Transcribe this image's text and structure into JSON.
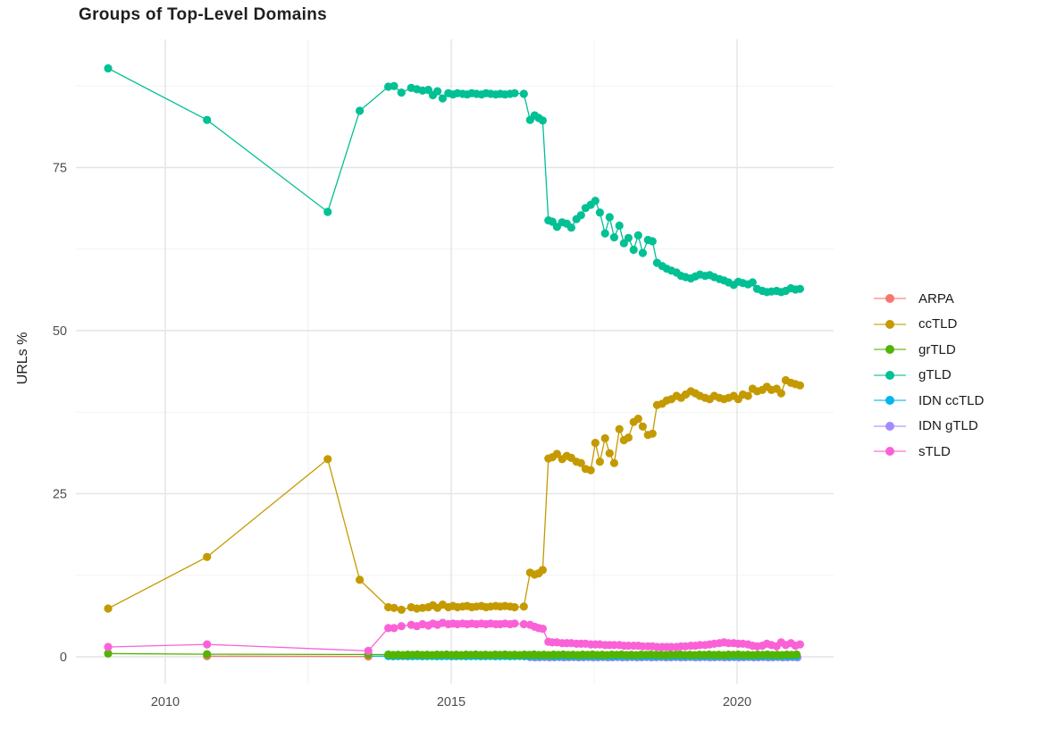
{
  "chart_data": {
    "type": "line",
    "title": "Groups of Top-Level Domains",
    "xlabel": "",
    "ylabel": "URLs %",
    "x_ticks": [
      2010,
      2015,
      2020
    ],
    "x_minor": [
      2012.5,
      2017.5
    ],
    "y_ticks": [
      0,
      25,
      50,
      75
    ],
    "y_minor": [
      12.5,
      37.5,
      62.5,
      87.5
    ],
    "xlim": [
      2008.4,
      2021.7
    ],
    "ylim": [
      -4,
      94
    ],
    "grid": "major-and-minor",
    "legend_position": "right",
    "draw_order": [
      "IDN gTLD",
      "IDN ccTLD",
      "ARPA",
      "grTLD",
      "ccTLD",
      "gTLD",
      "sTLD"
    ],
    "series": [
      {
        "name": "ARPA",
        "color": "#F8766D",
        "points": [
          [
            2010.73,
            0.1
          ],
          [
            2013.55,
            0.05
          ]
        ]
      },
      {
        "name": "ccTLD",
        "color": "#C49A00",
        "points": [
          [
            2009.0,
            7.4
          ],
          [
            2010.73,
            15.3
          ],
          [
            2012.84,
            30.3
          ],
          [
            2013.4,
            11.8
          ],
          [
            2013.9,
            7.6
          ],
          [
            2014.0,
            7.5
          ],
          [
            2014.13,
            7.2
          ],
          [
            2014.3,
            7.6
          ],
          [
            2014.4,
            7.4
          ],
          [
            2014.5,
            7.5
          ],
          [
            2014.6,
            7.6
          ],
          [
            2014.68,
            7.9
          ],
          [
            2014.76,
            7.5
          ],
          [
            2014.85,
            8.0
          ],
          [
            2014.95,
            7.6
          ],
          [
            2015.03,
            7.8
          ],
          [
            2015.11,
            7.6
          ],
          [
            2015.2,
            7.7
          ],
          [
            2015.28,
            7.8
          ],
          [
            2015.36,
            7.6
          ],
          [
            2015.44,
            7.7
          ],
          [
            2015.53,
            7.8
          ],
          [
            2015.61,
            7.6
          ],
          [
            2015.69,
            7.7
          ],
          [
            2015.78,
            7.8
          ],
          [
            2015.86,
            7.7
          ],
          [
            2015.94,
            7.8
          ],
          [
            2016.03,
            7.7
          ],
          [
            2016.11,
            7.6
          ],
          [
            2016.27,
            7.7
          ],
          [
            2016.38,
            12.9
          ],
          [
            2016.46,
            12.6
          ],
          [
            2016.53,
            12.8
          ],
          [
            2016.6,
            13.3
          ],
          [
            2016.7,
            30.4
          ],
          [
            2016.77,
            30.6
          ],
          [
            2016.85,
            31.1
          ],
          [
            2016.94,
            30.3
          ],
          [
            2017.02,
            30.8
          ],
          [
            2017.1,
            30.5
          ],
          [
            2017.19,
            29.9
          ],
          [
            2017.27,
            29.7
          ],
          [
            2017.35,
            28.8
          ],
          [
            2017.44,
            28.6
          ],
          [
            2017.52,
            32.8
          ],
          [
            2017.6,
            29.9
          ],
          [
            2017.69,
            33.5
          ],
          [
            2017.77,
            31.2
          ],
          [
            2017.85,
            29.7
          ],
          [
            2017.94,
            34.9
          ],
          [
            2018.02,
            33.2
          ],
          [
            2018.1,
            33.6
          ],
          [
            2018.19,
            36.0
          ],
          [
            2018.27,
            36.5
          ],
          [
            2018.35,
            35.3
          ],
          [
            2018.44,
            34.0
          ],
          [
            2018.52,
            34.2
          ],
          [
            2018.6,
            38.6
          ],
          [
            2018.69,
            38.8
          ],
          [
            2018.77,
            39.3
          ],
          [
            2018.85,
            39.5
          ],
          [
            2018.94,
            40.0
          ],
          [
            2019.02,
            39.7
          ],
          [
            2019.1,
            40.2
          ],
          [
            2019.19,
            40.7
          ],
          [
            2019.27,
            40.4
          ],
          [
            2019.35,
            40.0
          ],
          [
            2019.44,
            39.7
          ],
          [
            2019.52,
            39.5
          ],
          [
            2019.6,
            40.0
          ],
          [
            2019.69,
            39.7
          ],
          [
            2019.77,
            39.5
          ],
          [
            2019.85,
            39.7
          ],
          [
            2019.94,
            40.0
          ],
          [
            2020.02,
            39.5
          ],
          [
            2020.1,
            40.2
          ],
          [
            2020.19,
            40.0
          ],
          [
            2020.27,
            41.1
          ],
          [
            2020.35,
            40.7
          ],
          [
            2020.44,
            40.9
          ],
          [
            2020.52,
            41.4
          ],
          [
            2020.6,
            40.9
          ],
          [
            2020.69,
            41.1
          ],
          [
            2020.77,
            40.4
          ],
          [
            2020.85,
            42.4
          ],
          [
            2020.94,
            42.0
          ],
          [
            2021.02,
            41.8
          ],
          [
            2021.1,
            41.6
          ]
        ]
      },
      {
        "name": "grTLD",
        "color": "#53B400",
        "points": [
          [
            2009.0,
            0.5
          ],
          [
            2010.73,
            0.4
          ],
          [
            2013.55,
            0.35
          ]
        ],
        "flat": {
          "from": 2013.9,
          "to": 2021.1,
          "step": 0.085,
          "value": 0.3,
          "jitter": [
            0.04,
            -0.03,
            0.01,
            -0.04,
            0.03,
            0.0
          ]
        }
      },
      {
        "name": "gTLD",
        "color": "#00C094",
        "points": [
          [
            2009.0,
            90.2
          ],
          [
            2010.73,
            82.3
          ],
          [
            2012.84,
            68.2
          ],
          [
            2013.4,
            83.7
          ],
          [
            2013.9,
            87.4
          ],
          [
            2014.0,
            87.5
          ],
          [
            2014.13,
            86.5
          ],
          [
            2014.3,
            87.2
          ],
          [
            2014.4,
            87.0
          ],
          [
            2014.5,
            86.8
          ],
          [
            2014.6,
            86.9
          ],
          [
            2014.68,
            86.1
          ],
          [
            2014.76,
            86.7
          ],
          [
            2014.85,
            85.6
          ],
          [
            2014.95,
            86.4
          ],
          [
            2015.03,
            86.2
          ],
          [
            2015.11,
            86.4
          ],
          [
            2015.2,
            86.3
          ],
          [
            2015.28,
            86.2
          ],
          [
            2015.36,
            86.4
          ],
          [
            2015.44,
            86.3
          ],
          [
            2015.53,
            86.2
          ],
          [
            2015.61,
            86.4
          ],
          [
            2015.69,
            86.3
          ],
          [
            2015.78,
            86.2
          ],
          [
            2015.86,
            86.3
          ],
          [
            2015.94,
            86.2
          ],
          [
            2016.03,
            86.3
          ],
          [
            2016.11,
            86.4
          ],
          [
            2016.27,
            86.3
          ],
          [
            2016.38,
            82.3
          ],
          [
            2016.46,
            83.0
          ],
          [
            2016.53,
            82.6
          ],
          [
            2016.6,
            82.2
          ],
          [
            2016.7,
            66.9
          ],
          [
            2016.77,
            66.7
          ],
          [
            2016.85,
            65.9
          ],
          [
            2016.94,
            66.6
          ],
          [
            2017.02,
            66.4
          ],
          [
            2017.1,
            65.8
          ],
          [
            2017.19,
            67.1
          ],
          [
            2017.27,
            67.7
          ],
          [
            2017.35,
            68.8
          ],
          [
            2017.44,
            69.3
          ],
          [
            2017.52,
            69.9
          ],
          [
            2017.6,
            68.1
          ],
          [
            2017.69,
            64.9
          ],
          [
            2017.77,
            67.4
          ],
          [
            2017.85,
            64.3
          ],
          [
            2017.94,
            66.1
          ],
          [
            2018.02,
            63.4
          ],
          [
            2018.1,
            64.2
          ],
          [
            2018.19,
            62.4
          ],
          [
            2018.27,
            64.6
          ],
          [
            2018.35,
            61.9
          ],
          [
            2018.44,
            63.9
          ],
          [
            2018.52,
            63.7
          ],
          [
            2018.6,
            60.4
          ],
          [
            2018.69,
            59.9
          ],
          [
            2018.77,
            59.5
          ],
          [
            2018.85,
            59.2
          ],
          [
            2018.94,
            58.9
          ],
          [
            2019.02,
            58.4
          ],
          [
            2019.1,
            58.2
          ],
          [
            2019.19,
            58.0
          ],
          [
            2019.27,
            58.3
          ],
          [
            2019.35,
            58.6
          ],
          [
            2019.44,
            58.4
          ],
          [
            2019.52,
            58.5
          ],
          [
            2019.6,
            58.2
          ],
          [
            2019.69,
            57.9
          ],
          [
            2019.77,
            57.7
          ],
          [
            2019.85,
            57.4
          ],
          [
            2019.94,
            57.0
          ],
          [
            2020.02,
            57.5
          ],
          [
            2020.1,
            57.3
          ],
          [
            2020.19,
            57.1
          ],
          [
            2020.27,
            57.4
          ],
          [
            2020.35,
            56.4
          ],
          [
            2020.44,
            56.1
          ],
          [
            2020.52,
            55.9
          ],
          [
            2020.6,
            56.0
          ],
          [
            2020.69,
            56.1
          ],
          [
            2020.77,
            55.9
          ],
          [
            2020.85,
            56.1
          ],
          [
            2020.94,
            56.5
          ],
          [
            2021.02,
            56.3
          ],
          [
            2021.1,
            56.4
          ]
        ]
      },
      {
        "name": "IDN ccTLD",
        "color": "#00B6EB",
        "points": [
          [
            2013.55,
            0.1
          ]
        ],
        "flat": {
          "from": 2013.9,
          "to": 2021.1,
          "step": 0.085,
          "value": 0.1,
          "jitter": [
            0.02,
            -0.02,
            0.0
          ]
        }
      },
      {
        "name": "IDN gTLD",
        "color": "#A58AFF",
        "points": [],
        "flat": {
          "from": 2016.38,
          "to": 2021.1,
          "step": 0.085,
          "value": -0.07,
          "jitter": [
            0.02,
            -0.02,
            0.0
          ]
        }
      },
      {
        "name": "sTLD",
        "color": "#FB61D7",
        "points": [
          [
            2009.0,
            1.5
          ],
          [
            2010.73,
            1.9
          ],
          [
            2013.55,
            0.9
          ],
          [
            2013.9,
            4.4
          ],
          [
            2014.0,
            4.4
          ],
          [
            2014.13,
            4.7
          ],
          [
            2014.3,
            4.9
          ],
          [
            2014.4,
            4.7
          ],
          [
            2014.5,
            5.0
          ],
          [
            2014.6,
            4.8
          ],
          [
            2014.68,
            5.1
          ],
          [
            2014.76,
            4.9
          ],
          [
            2014.85,
            5.2
          ],
          [
            2014.95,
            5.0
          ],
          [
            2015.03,
            5.1
          ],
          [
            2015.11,
            5.0
          ],
          [
            2015.2,
            5.1
          ],
          [
            2015.28,
            5.0
          ],
          [
            2015.36,
            5.1
          ],
          [
            2015.44,
            5.0
          ],
          [
            2015.53,
            5.1
          ],
          [
            2015.61,
            5.0
          ],
          [
            2015.69,
            5.1
          ],
          [
            2015.78,
            5.0
          ],
          [
            2015.86,
            5.0
          ],
          [
            2015.94,
            5.1
          ],
          [
            2016.03,
            5.0
          ],
          [
            2016.11,
            5.1
          ],
          [
            2016.27,
            5.0
          ],
          [
            2016.38,
            4.9
          ],
          [
            2016.46,
            4.6
          ],
          [
            2016.53,
            4.4
          ],
          [
            2016.6,
            4.3
          ],
          [
            2016.7,
            2.3
          ],
          [
            2016.77,
            2.2
          ],
          [
            2016.85,
            2.2
          ],
          [
            2016.94,
            2.1
          ],
          [
            2017.02,
            2.1
          ],
          [
            2017.1,
            2.1
          ],
          [
            2017.19,
            2.0
          ],
          [
            2017.27,
            2.0
          ],
          [
            2017.35,
            2.0
          ],
          [
            2017.44,
            1.9
          ],
          [
            2017.52,
            1.9
          ],
          [
            2017.6,
            1.9
          ],
          [
            2017.69,
            1.8
          ],
          [
            2017.77,
            1.8
          ],
          [
            2017.85,
            1.8
          ],
          [
            2017.94,
            1.8
          ],
          [
            2018.02,
            1.7
          ],
          [
            2018.1,
            1.7
          ],
          [
            2018.19,
            1.7
          ],
          [
            2018.27,
            1.7
          ],
          [
            2018.35,
            1.6
          ],
          [
            2018.44,
            1.6
          ],
          [
            2018.52,
            1.6
          ],
          [
            2018.6,
            1.5
          ],
          [
            2018.69,
            1.5
          ],
          [
            2018.77,
            1.5
          ],
          [
            2018.85,
            1.5
          ],
          [
            2018.94,
            1.5
          ],
          [
            2019.02,
            1.6
          ],
          [
            2019.1,
            1.6
          ],
          [
            2019.19,
            1.7
          ],
          [
            2019.27,
            1.7
          ],
          [
            2019.35,
            1.8
          ],
          [
            2019.44,
            1.8
          ],
          [
            2019.52,
            1.9
          ],
          [
            2019.6,
            2.0
          ],
          [
            2019.69,
            2.1
          ],
          [
            2019.77,
            2.2
          ],
          [
            2019.85,
            2.1
          ],
          [
            2019.94,
            2.1
          ],
          [
            2020.02,
            2.0
          ],
          [
            2020.1,
            2.0
          ],
          [
            2020.19,
            1.9
          ],
          [
            2020.27,
            1.7
          ],
          [
            2020.35,
            1.6
          ],
          [
            2020.44,
            1.7
          ],
          [
            2020.52,
            2.0
          ],
          [
            2020.6,
            1.8
          ],
          [
            2020.69,
            1.6
          ],
          [
            2020.77,
            2.2
          ],
          [
            2020.85,
            1.8
          ],
          [
            2020.94,
            2.1
          ],
          [
            2021.02,
            1.7
          ],
          [
            2021.1,
            1.9
          ]
        ]
      }
    ],
    "legend": {
      "items": [
        {
          "label": "ARPA",
          "color": "#F8766D"
        },
        {
          "label": "ccTLD",
          "color": "#C49A00"
        },
        {
          "label": "grTLD",
          "color": "#53B400"
        },
        {
          "label": "gTLD",
          "color": "#00C094"
        },
        {
          "label": "IDN ccTLD",
          "color": "#00B6EB"
        },
        {
          "label": "IDN gTLD",
          "color": "#A58AFF"
        },
        {
          "label": "sTLD",
          "color": "#FB61D7"
        }
      ]
    },
    "colors": {
      "background": "#ffffff",
      "grid_major": "#e4e4e4",
      "grid_minor": "#f2f2f2",
      "tick_text": "#4d4d4d",
      "title_text": "#1f1f1f"
    }
  }
}
